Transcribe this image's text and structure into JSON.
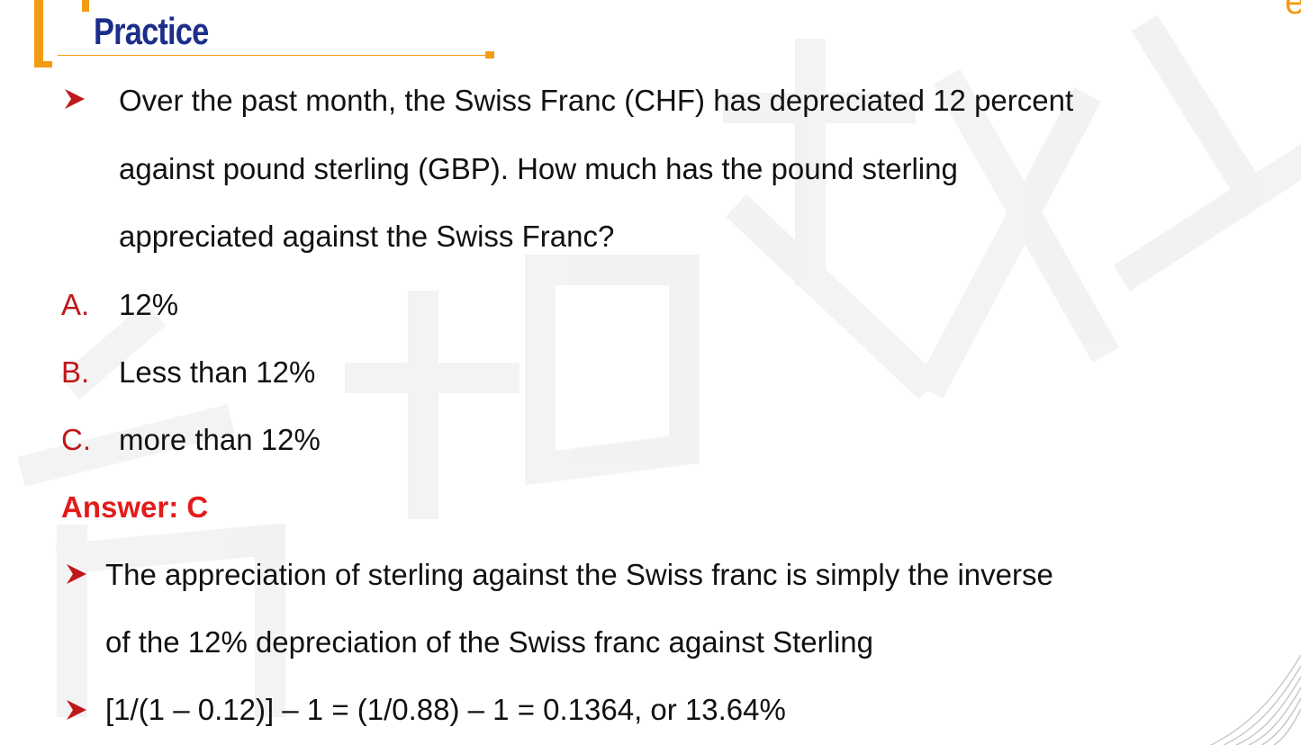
{
  "header": {
    "title": "Practice"
  },
  "question": {
    "lines": [
      "Over the past month, the Swiss Franc (CHF) has depreciated 12 percent",
      "against pound sterling (GBP). How much has the pound sterling",
      "appreciated against the Swiss Franc?"
    ]
  },
  "options": [
    {
      "letter": "A.",
      "text": "12%"
    },
    {
      "letter": "B.",
      "text": "Less than 12%"
    },
    {
      "letter": "C.",
      "text": "more than 12%"
    }
  ],
  "answer": "Answer: C",
  "explanation": {
    "point1_lines": [
      "The appreciation of sterling against the Swiss franc is simply the inverse",
      "of the 12% depreciation of the Swiss franc against Sterling"
    ],
    "point2": "[1/(1 – 0.12)] – 1 = (1/0.88) – 1 = 0.1364, or 13.64%"
  },
  "colors": {
    "accent_orange": "#f39c12",
    "title_navy": "#1c2e8a",
    "option_red": "#c0171b",
    "answer_red": "#e31b1b",
    "bullet_red": "#c0171b"
  },
  "icons": {
    "bullet": "arrowhead-bullet-icon"
  }
}
